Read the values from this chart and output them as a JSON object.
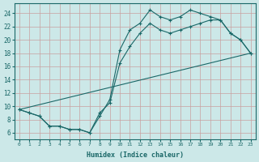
{
  "title": "",
  "xlabel": "Humidex (Indice chaleur)",
  "ylabel": "",
  "background_color": "#cce8e8",
  "grid_color": "#b0c8c8",
  "line_color": "#1a6868",
  "xlim": [
    -0.5,
    23.5
  ],
  "ylim": [
    5.0,
    25.5
  ],
  "xticks": [
    0,
    1,
    2,
    3,
    4,
    5,
    6,
    7,
    8,
    9,
    10,
    11,
    12,
    13,
    14,
    15,
    16,
    17,
    18,
    19,
    20,
    21,
    22,
    23
  ],
  "yticks": [
    6,
    8,
    10,
    12,
    14,
    16,
    18,
    20,
    22,
    24
  ],
  "line1_x": [
    0,
    1,
    2,
    3,
    4,
    5,
    6,
    7,
    8,
    9,
    10,
    11,
    12,
    13,
    14,
    15,
    16,
    17,
    18,
    19,
    20,
    21,
    22,
    23
  ],
  "line1_y": [
    9.5,
    9.0,
    8.5,
    7.0,
    7.0,
    6.5,
    6.5,
    6.0,
    8.5,
    11.0,
    18.5,
    21.5,
    22.5,
    24.5,
    23.5,
    23.0,
    23.5,
    24.5,
    24.0,
    23.5,
    23.0,
    21.0,
    20.0,
    18.0
  ],
  "line2_x": [
    0,
    1,
    2,
    3,
    4,
    5,
    6,
    7,
    8,
    9,
    10,
    11,
    12,
    13,
    14,
    15,
    16,
    17,
    18,
    19,
    20,
    21,
    22,
    23
  ],
  "line2_y": [
    9.5,
    9.0,
    8.5,
    7.0,
    7.0,
    6.5,
    6.5,
    6.0,
    9.0,
    10.5,
    16.5,
    19.0,
    21.0,
    22.5,
    21.5,
    21.0,
    21.5,
    22.0,
    22.5,
    23.0,
    23.0,
    21.0,
    20.0,
    18.0
  ],
  "line3_x": [
    0,
    23
  ],
  "line3_y": [
    9.5,
    18.0
  ],
  "marker": "+"
}
